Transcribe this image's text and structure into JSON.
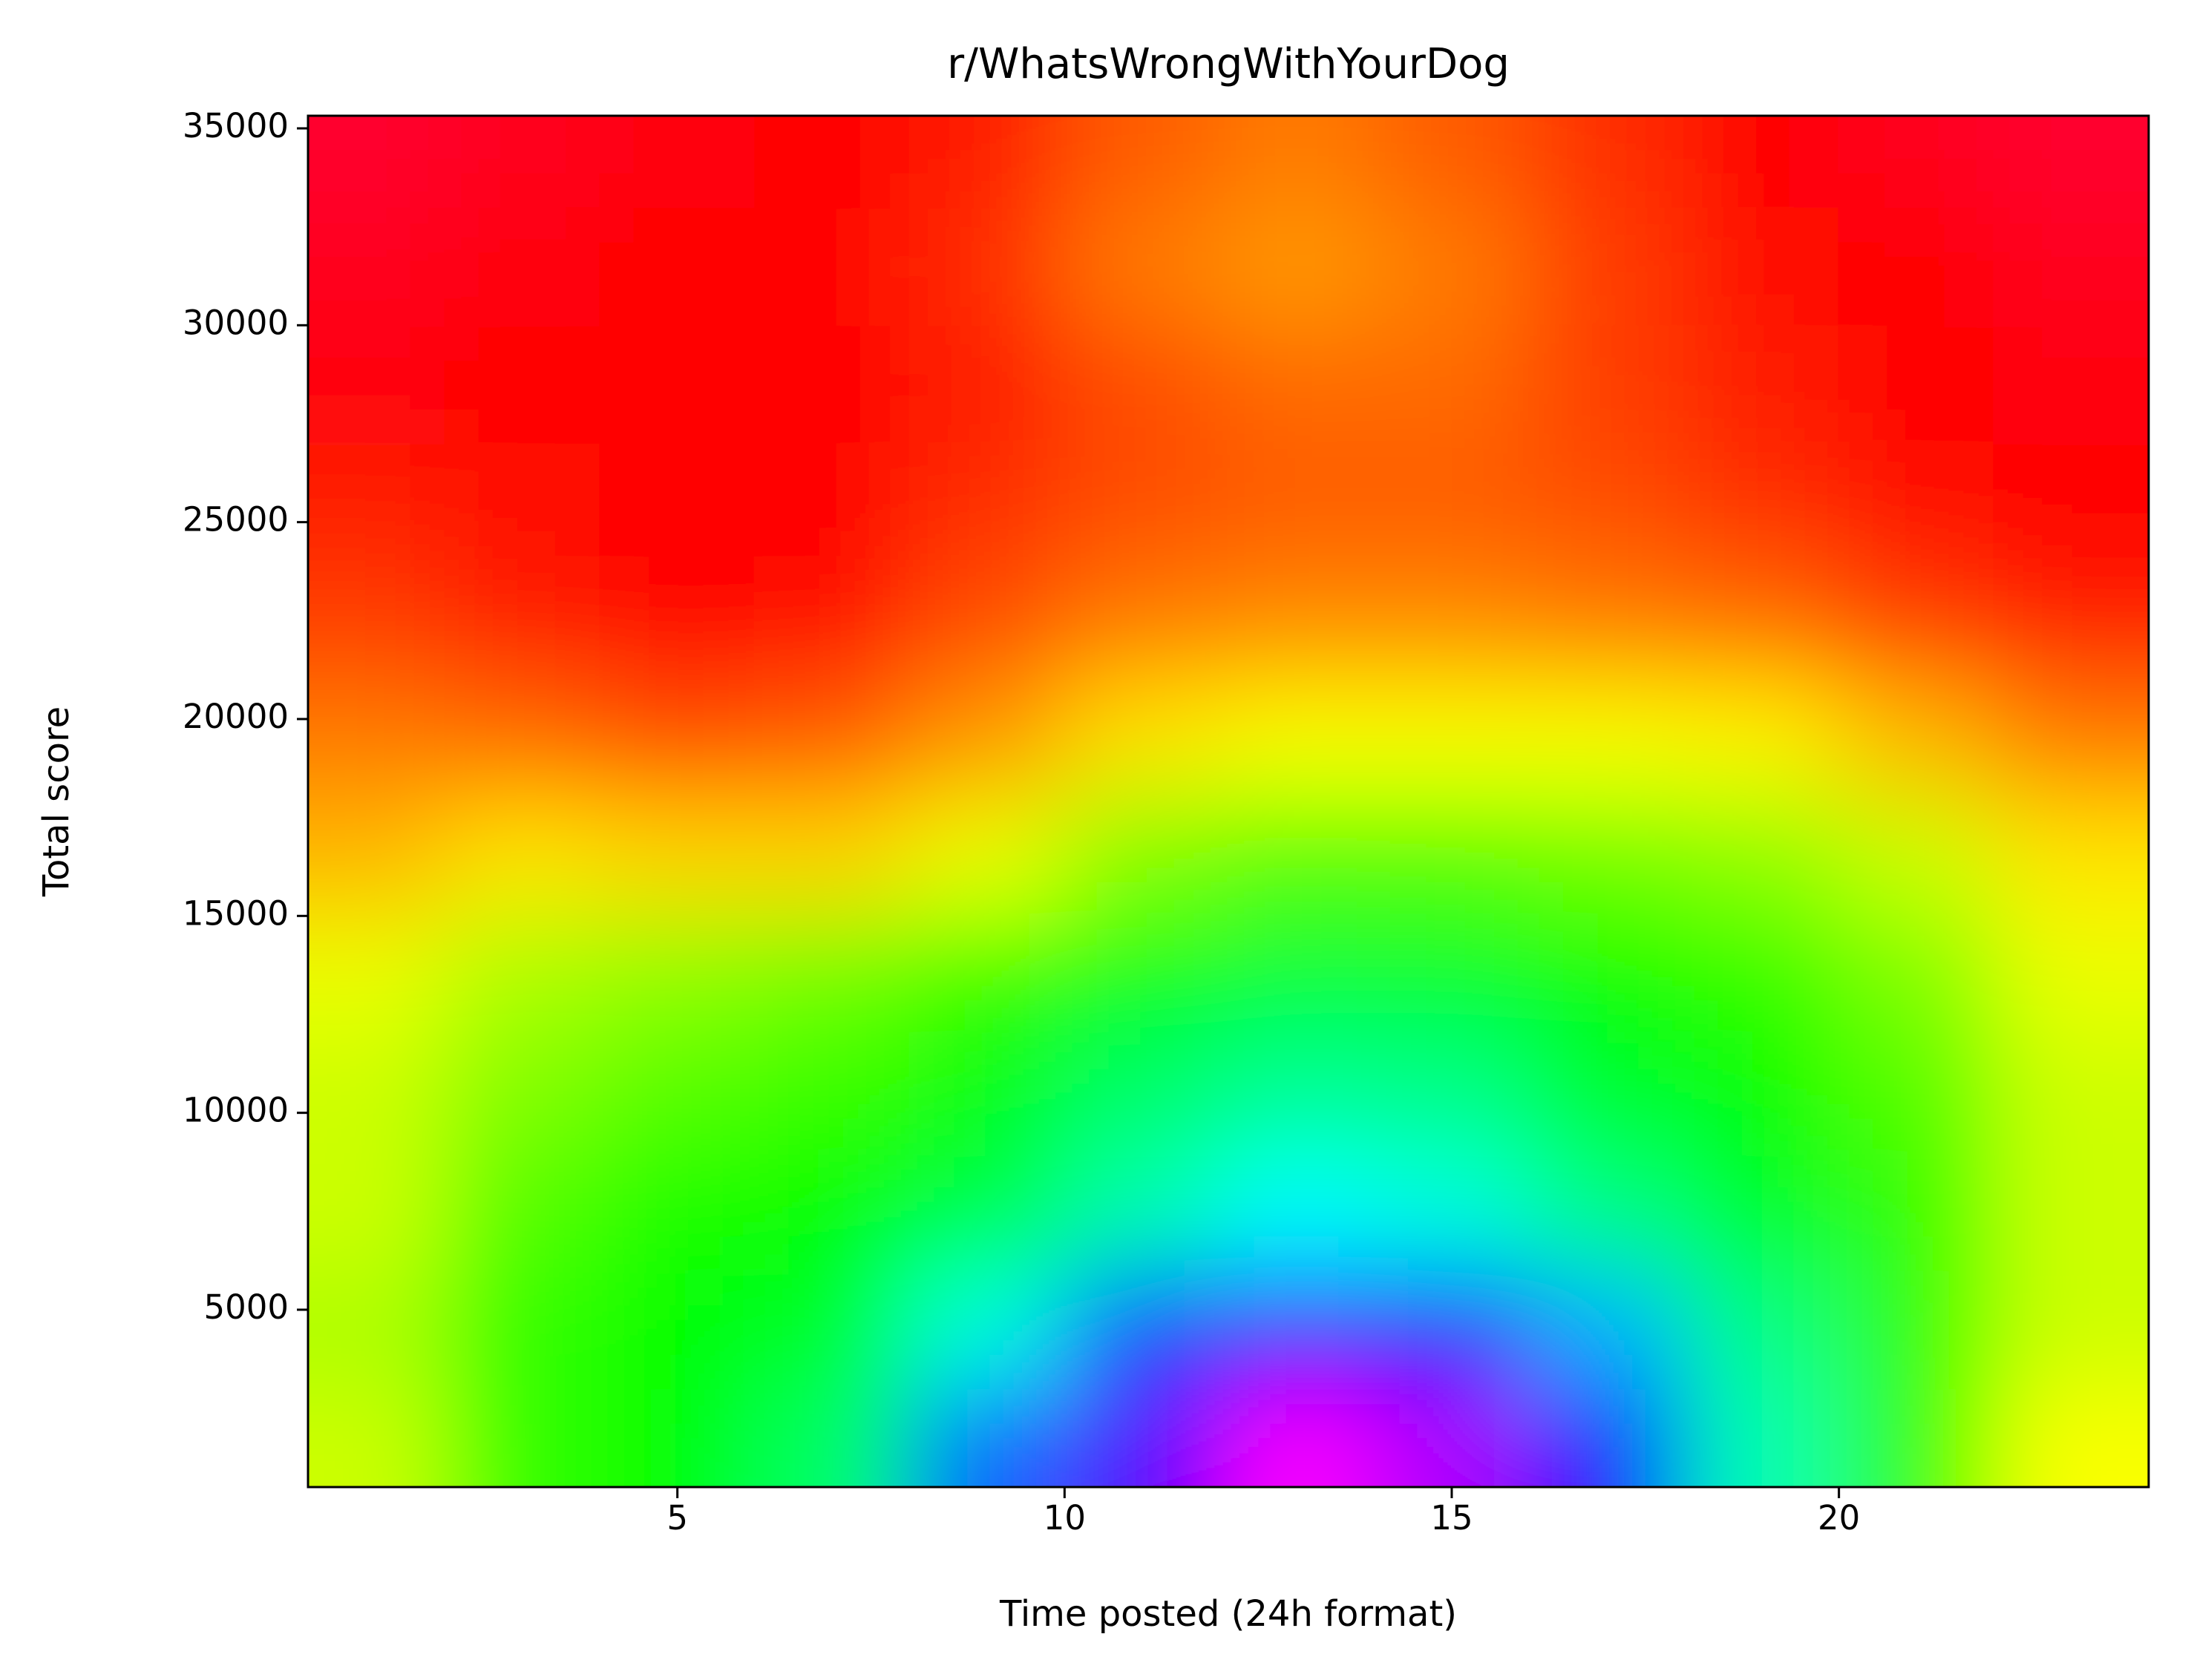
{
  "chart_data": {
    "type": "heatmap",
    "title": "r/WhatsWrongWithYourDog",
    "x_label": "Time posted (24h format)",
    "y_label": "Total score",
    "cmap": "hsv",
    "x": [
      1,
      3,
      5,
      7,
      9,
      11,
      13,
      15,
      17,
      19,
      21,
      23
    ],
    "y": [
      1500,
      4500,
      7500,
      10500,
      13500,
      16500,
      19500,
      22500,
      25500,
      28500,
      31500,
      34500
    ],
    "z": [
      [
        0.2,
        0.3,
        0.33,
        0.4,
        0.6,
        0.72,
        0.83,
        0.78,
        0.65,
        0.45,
        0.3,
        0.17
      ],
      [
        0.22,
        0.3,
        0.33,
        0.36,
        0.48,
        0.62,
        0.68,
        0.65,
        0.55,
        0.42,
        0.3,
        0.2
      ],
      [
        0.2,
        0.28,
        0.32,
        0.33,
        0.38,
        0.45,
        0.5,
        0.48,
        0.42,
        0.36,
        0.3,
        0.2
      ],
      [
        0.2,
        0.25,
        0.28,
        0.3,
        0.34,
        0.4,
        0.43,
        0.42,
        0.36,
        0.33,
        0.28,
        0.2
      ],
      [
        0.18,
        0.22,
        0.24,
        0.26,
        0.3,
        0.35,
        0.37,
        0.36,
        0.33,
        0.3,
        0.25,
        0.18
      ],
      [
        0.12,
        0.15,
        0.14,
        0.14,
        0.18,
        0.25,
        0.28,
        0.28,
        0.26,
        0.24,
        0.2,
        0.15
      ],
      [
        0.08,
        0.07,
        0.05,
        0.06,
        0.1,
        0.15,
        0.17,
        0.17,
        0.17,
        0.16,
        0.12,
        0.08
      ],
      [
        0.04,
        0.02,
        0.0,
        0.01,
        0.05,
        0.08,
        0.09,
        0.09,
        0.08,
        0.07,
        0.04,
        0.02
      ],
      [
        0.02,
        0.01,
        0.0,
        0.0,
        0.03,
        0.05,
        0.06,
        0.06,
        0.05,
        0.03,
        0.01,
        0.0
      ],
      [
        0.99,
        0.0,
        0.0,
        0.0,
        0.02,
        0.05,
        0.07,
        0.07,
        0.04,
        0.02,
        0.0,
        0.99
      ],
      [
        0.98,
        0.99,
        0.0,
        0.0,
        0.03,
        0.08,
        0.1,
        0.08,
        0.04,
        0.01,
        0.0,
        0.98
      ],
      [
        0.97,
        0.98,
        0.99,
        0.0,
        0.02,
        0.06,
        0.08,
        0.06,
        0.03,
        0.0,
        0.98,
        0.97
      ]
    ],
    "xlim": [
      0.23,
      24
    ],
    "ylim": [
      496,
      35320
    ],
    "xticks": [
      5,
      10,
      15,
      20
    ],
    "yticks": [
      5000,
      10000,
      15000,
      20000,
      25000,
      30000,
      35000
    ]
  }
}
